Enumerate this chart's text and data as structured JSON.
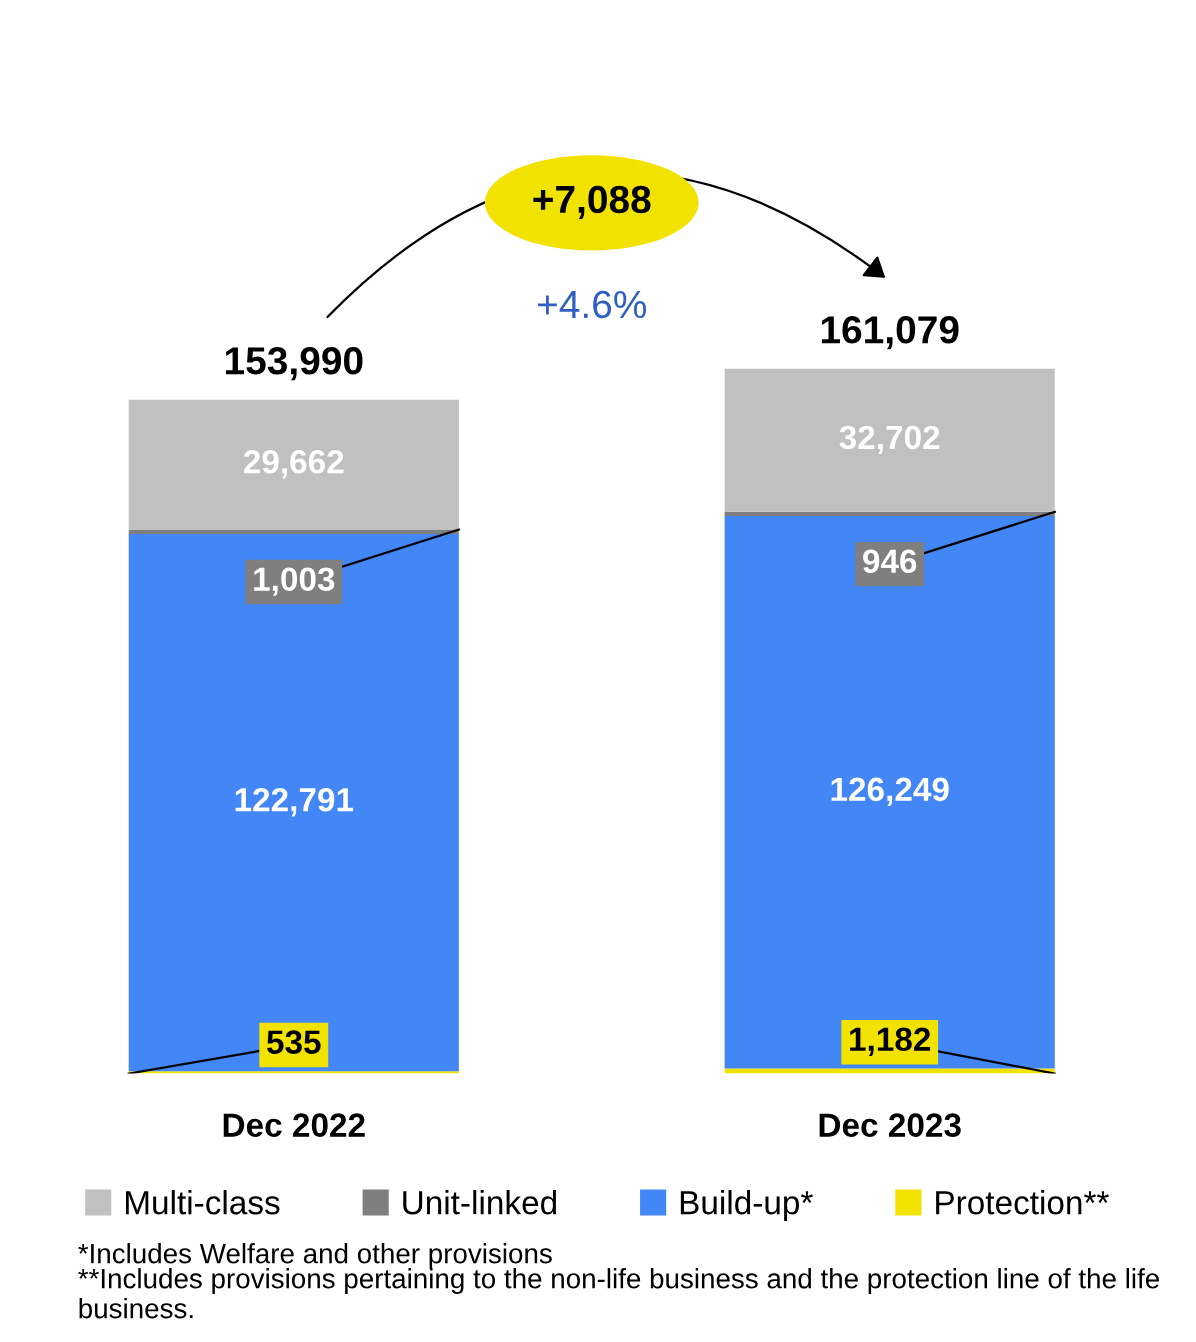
{
  "chart_data": {
    "type": "bar",
    "stacked": true,
    "categories": [
      "Dec 2022",
      "Dec 2023"
    ],
    "series": [
      {
        "name": "Protection**",
        "color": "#f2e200",
        "values": [
          535,
          1182
        ],
        "value_labels": [
          "535",
          "1,182"
        ]
      },
      {
        "name": "Build-up*",
        "color": "#4287f5",
        "values": [
          122791,
          126249
        ],
        "value_labels": [
          "122,791",
          "126,249"
        ]
      },
      {
        "name": "Unit-linked",
        "color": "#7f7f7f",
        "values": [
          1003,
          946
        ],
        "value_labels": [
          "1,003",
          "946"
        ]
      },
      {
        "name": "Multi-class",
        "color": "#c0c0c0",
        "values": [
          29662,
          32702
        ],
        "value_labels": [
          "29,662",
          "32,702"
        ]
      }
    ],
    "totals": [
      "153,990",
      "161,079"
    ],
    "legend": "bottom",
    "grid": false,
    "annotations": [
      "+7,088",
      "+4.6%",
      "*Includes Welfare and other provisions",
      "**Includes provisions pertaining to the non-life business and the protection line of the life business."
    ]
  }
}
